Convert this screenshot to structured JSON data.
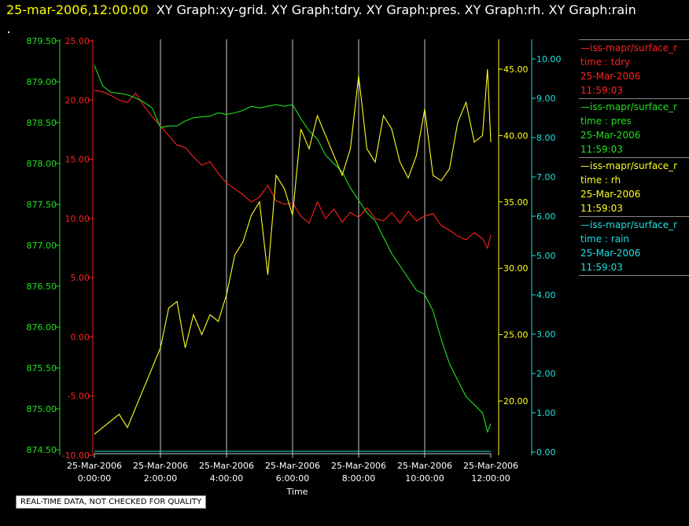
{
  "header": {
    "time": "25-mar-2006,12:00:00",
    "titles": "XY Graph:xy-grid.  XY Graph:tdry.  XY Graph:pres.  XY Graph:rh.  XY Graph:rain"
  },
  "footer_note": "REAL-TIME DATA, NOT CHECKED FOR QUALITY",
  "colors": {
    "tdry": "#ff2020",
    "pres": "#20e020",
    "rh": "#ffff20",
    "rain": "#20e0e0",
    "grid": "#c8c8c8"
  },
  "legend": [
    {
      "series": "tdry",
      "line1": "—iss-mapr/surface_r",
      "line2": "time : tdry",
      "line3": "25-Mar-2006",
      "line4": "11:59:03"
    },
    {
      "series": "pres",
      "line1": "—iss-mapr/surface_r",
      "line2": "time : pres",
      "line3": "25-Mar-2006",
      "line4": "11:59:03"
    },
    {
      "series": "rh",
      "line1": "—iss-mapr/surface_r",
      "line2": "time : rh",
      "line3": "25-Mar-2006",
      "line4": "11:59:03"
    },
    {
      "series": "rain",
      "line1": "—iss-mapr/surface_r",
      "line2": "time : rain",
      "line3": "25-Mar-2006",
      "line4": "11:59:03"
    }
  ],
  "chart_data": {
    "type": "line",
    "xlabel": "Time",
    "x_ticks": [
      {
        "hour": 0,
        "date": "25-Mar-2006",
        "time": "0:00:00"
      },
      {
        "hour": 2,
        "date": "25-Mar-2006",
        "time": "2:00:00"
      },
      {
        "hour": 4,
        "date": "25-Mar-2006",
        "time": "4:00:00"
      },
      {
        "hour": 6,
        "date": "25-Mar-2006",
        "time": "6:00:00"
      },
      {
        "hour": 8,
        "date": "25-Mar-2006",
        "time": "8:00:00"
      },
      {
        "hour": 10,
        "date": "25-Mar-2006",
        "time": "10:00:00"
      },
      {
        "hour": 12,
        "date": "25-Mar-2006",
        "time": "12:00:00"
      }
    ],
    "xlim": [
      0,
      12
    ],
    "grid": "vertical",
    "axes": {
      "pres": {
        "ylim": [
          874.5,
          879.5
        ],
        "ticks": [
          "879.50",
          "879.00",
          "878.50",
          "878.00",
          "877.50",
          "877.00",
          "876.50",
          "876.00",
          "875.50",
          "875.00",
          "874.50"
        ]
      },
      "tdry": {
        "ylim": [
          -10,
          25
        ],
        "ticks": [
          "25.00",
          "20.00",
          "15.00",
          "10.00",
          "5.00",
          "0.00",
          "-5.00",
          "-10.00"
        ]
      },
      "rh": {
        "ylim": [
          15,
          47
        ],
        "ticks": [
          "45.00",
          "40.00",
          "35.00",
          "30.00",
          "25.00",
          "20.00"
        ]
      },
      "rain": {
        "ylim": [
          0,
          10.5
        ],
        "ticks": [
          "10.00",
          "9.00",
          "8.00",
          "7.00",
          "6.00",
          "5.00",
          "4.00",
          "3.00",
          "2.00",
          "1.00",
          "0.00"
        ]
      }
    },
    "series": [
      {
        "key": "tdry",
        "name": "tdry",
        "x": [
          0,
          0.25,
          0.5,
          0.75,
          1.0,
          1.25,
          1.5,
          1.75,
          2.0,
          2.25,
          2.5,
          2.75,
          3.0,
          3.25,
          3.5,
          3.75,
          4.0,
          4.25,
          4.5,
          4.75,
          5.0,
          5.25,
          5.5,
          5.75,
          6.0,
          6.25,
          6.5,
          6.75,
          7.0,
          7.25,
          7.5,
          7.75,
          8.0,
          8.25,
          8.5,
          8.75,
          9.0,
          9.25,
          9.5,
          9.75,
          10.0,
          10.25,
          10.5,
          10.75,
          11.0,
          11.25,
          11.5,
          11.75,
          11.9,
          12.0
        ],
        "y": [
          20.8,
          20.7,
          20.4,
          20.0,
          19.8,
          20.6,
          19.5,
          18.6,
          17.8,
          17.0,
          16.2,
          16.0,
          15.2,
          14.5,
          14.8,
          13.8,
          13.0,
          12.5,
          12.0,
          11.4,
          11.8,
          12.8,
          11.5,
          11.2,
          11.3,
          10.2,
          9.6,
          11.4,
          10.0,
          10.8,
          9.7,
          10.5,
          10.1,
          10.9,
          10.0,
          9.8,
          10.5,
          9.6,
          10.6,
          9.8,
          10.2,
          10.4,
          9.4,
          9.0,
          8.5,
          8.2,
          8.8,
          8.3,
          7.5,
          8.6
        ]
      },
      {
        "key": "pres",
        "name": "pres",
        "x": [
          0,
          0.25,
          0.5,
          0.75,
          1.0,
          1.25,
          1.5,
          1.75,
          2.0,
          2.25,
          2.5,
          2.75,
          3.0,
          3.25,
          3.5,
          3.75,
          4.0,
          4.25,
          4.5,
          4.75,
          5.0,
          5.25,
          5.5,
          5.75,
          6.0,
          6.25,
          6.5,
          6.75,
          7.0,
          7.25,
          7.5,
          7.75,
          8.0,
          8.25,
          8.5,
          8.75,
          9.0,
          9.25,
          9.5,
          9.75,
          10.0,
          10.25,
          10.5,
          10.75,
          11.0,
          11.25,
          11.5,
          11.75,
          11.9,
          12.0
        ],
        "y": [
          879.2,
          878.95,
          878.87,
          878.86,
          878.84,
          878.8,
          878.75,
          878.68,
          878.44,
          878.46,
          878.46,
          878.52,
          878.56,
          878.57,
          878.58,
          878.62,
          878.6,
          878.62,
          878.65,
          878.7,
          878.68,
          878.7,
          878.72,
          878.7,
          878.72,
          878.55,
          878.4,
          878.3,
          878.1,
          878.0,
          877.9,
          877.7,
          877.55,
          877.4,
          877.3,
          877.1,
          876.9,
          876.75,
          876.6,
          876.45,
          876.4,
          876.2,
          875.85,
          875.55,
          875.35,
          875.15,
          875.05,
          874.95,
          874.72,
          874.82
        ]
      },
      {
        "key": "rh",
        "name": "rh",
        "x": [
          0,
          0.25,
          0.5,
          0.75,
          1.0,
          1.25,
          1.5,
          1.75,
          2.0,
          2.25,
          2.5,
          2.75,
          3.0,
          3.25,
          3.5,
          3.75,
          4.0,
          4.25,
          4.5,
          4.75,
          5.0,
          5.25,
          5.5,
          5.75,
          6.0,
          6.25,
          6.5,
          6.75,
          7.0,
          7.25,
          7.5,
          7.75,
          8.0,
          8.25,
          8.5,
          8.75,
          9.0,
          9.25,
          9.5,
          9.75,
          10.0,
          10.25,
          10.5,
          10.75,
          11.0,
          11.25,
          11.5,
          11.75,
          11.9,
          12.0
        ],
        "y": [
          17.5,
          18.0,
          18.5,
          19.0,
          18.0,
          19.5,
          21.0,
          22.5,
          24.0,
          27.0,
          27.5,
          24.0,
          26.5,
          25.0,
          26.5,
          26.0,
          28.0,
          31.0,
          32.0,
          34.0,
          35.0,
          29.5,
          37.0,
          36.0,
          34.0,
          40.5,
          39.0,
          41.5,
          40.0,
          38.5,
          37.0,
          39.0,
          44.5,
          39.0,
          38.0,
          41.5,
          40.5,
          38.0,
          36.8,
          38.5,
          42.0,
          37.0,
          36.6,
          37.5,
          41.0,
          42.5,
          39.5,
          40.0,
          45.0,
          39.5
        ]
      },
      {
        "key": "rain",
        "name": "rain",
        "x": [
          0,
          12
        ],
        "y": [
          0.02,
          0.02
        ]
      }
    ]
  }
}
